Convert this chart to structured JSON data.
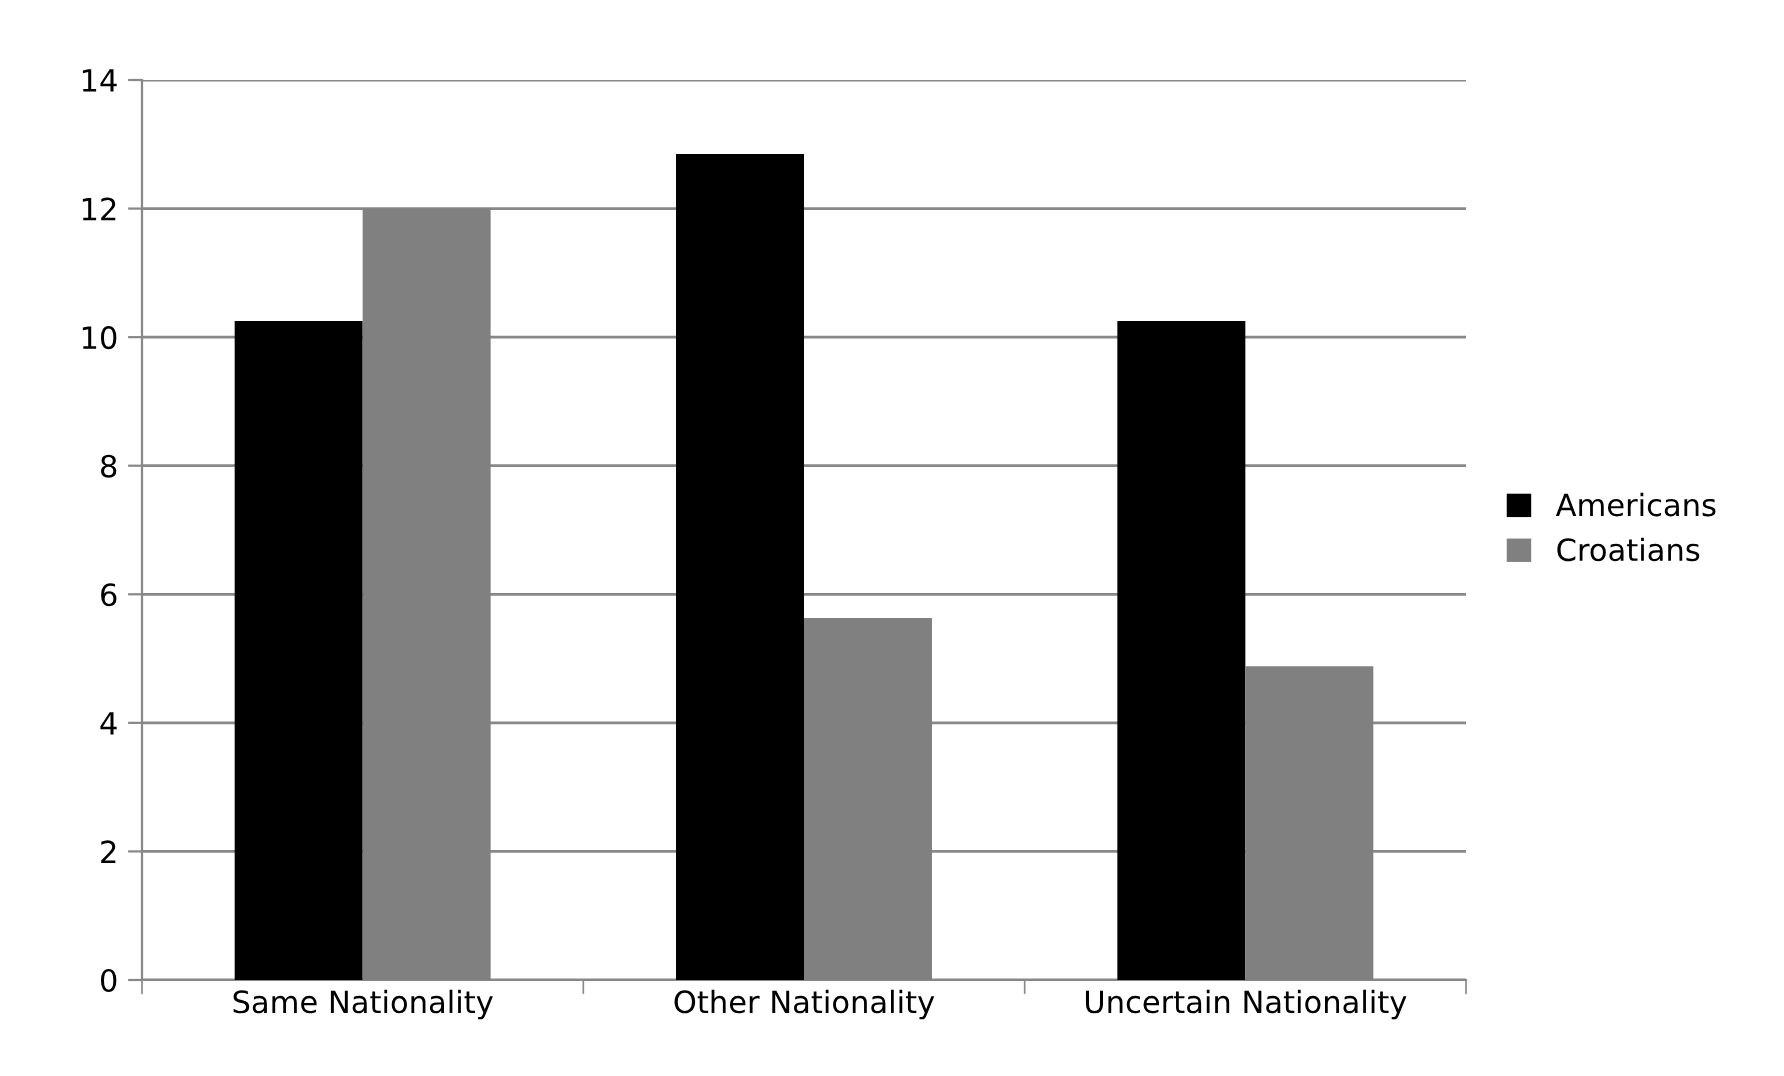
{
  "chart_data": {
    "type": "bar",
    "categories": [
      "Same Nationality",
      "Other Nationality",
      "Uncertain Nationality"
    ],
    "series": [
      {
        "name": "Americans",
        "color": "#000000",
        "values": [
          10.25,
          12.85,
          10.25
        ]
      },
      {
        "name": "Croatians",
        "color": "#808080",
        "values": [
          12.0,
          5.63,
          4.88
        ]
      }
    ],
    "ylim": [
      0,
      14
    ],
    "yticks": [
      0,
      2,
      4,
      6,
      8,
      10,
      12,
      14
    ],
    "grid": "y",
    "legend": "right"
  }
}
